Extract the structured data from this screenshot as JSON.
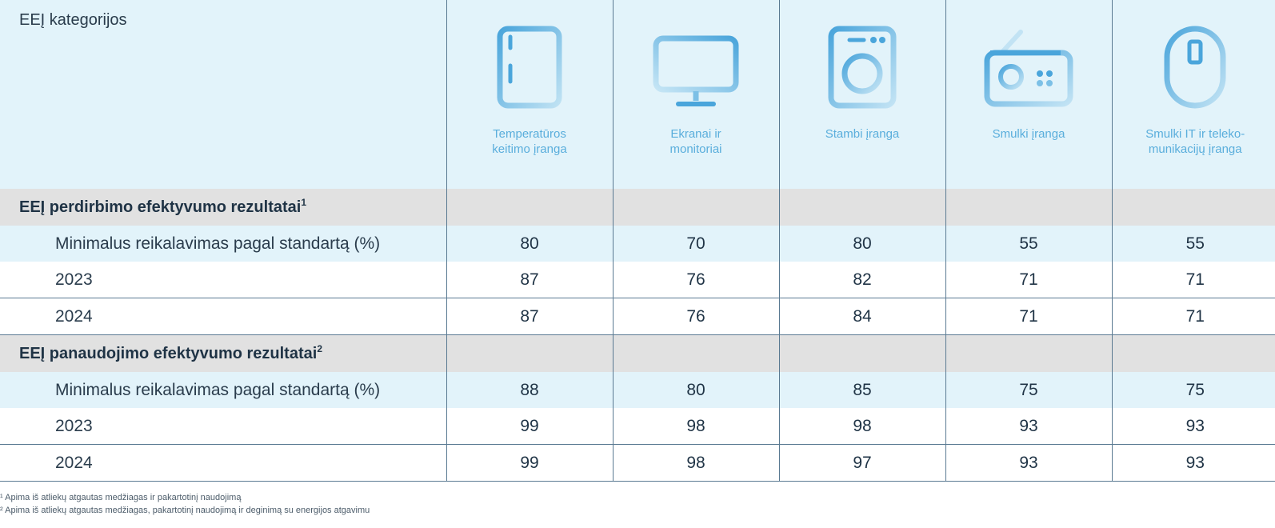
{
  "header": {
    "label": "EEĮ kategorijos"
  },
  "categories": [
    {
      "name": "Temperatūros keitimo įranga",
      "icon": "fridge-icon",
      "lines": [
        "Temperatūros",
        "keitimo įranga"
      ]
    },
    {
      "name": "Ekranai ir monitoriai",
      "icon": "monitor-icon",
      "lines": [
        "Ekranai ir",
        "monitoriai"
      ]
    },
    {
      "name": "Stambi įranga",
      "icon": "washing-machine-icon",
      "lines": [
        "Stambi įranga",
        ""
      ]
    },
    {
      "name": "Smulki įranga",
      "icon": "radio-icon",
      "lines": [
        "Smulki įranga",
        ""
      ]
    },
    {
      "name": "Smulki IT ir telekomunikacijų įranga",
      "icon": "computer-mouse-icon",
      "lines": [
        "Smulki IT ir teleko-",
        "munikacijų įranga"
      ]
    }
  ],
  "sections": [
    {
      "title": "EEĮ perdirbimo efektyvumo rezultatai",
      "note": "1",
      "rows": [
        {
          "label": "Minimalus reikalavimas pagal standartą (%)",
          "values": [
            "80",
            "70",
            "80",
            "55",
            "55"
          ]
        },
        {
          "label": "2023",
          "values": [
            "87",
            "76",
            "82",
            "71",
            "71"
          ]
        },
        {
          "label": "2024",
          "values": [
            "87",
            "76",
            "84",
            "71",
            "71"
          ]
        }
      ]
    },
    {
      "title": "EEĮ panaudojimo efektyvumo rezultatai",
      "note": "2",
      "rows": [
        {
          "label": "Minimalus reikalavimas pagal standartą (%)",
          "values": [
            "88",
            "80",
            "85",
            "75",
            "75"
          ]
        },
        {
          "label": "2023",
          "values": [
            "99",
            "98",
            "98",
            "93",
            "93"
          ]
        },
        {
          "label": "2024",
          "values": [
            "99",
            "98",
            "97",
            "93",
            "93"
          ]
        }
      ]
    }
  ],
  "footnotes": [
    "¹ Apima iš atliekų atgautas medžiagas ir pakartotinį naudojimą",
    "² Apima iš atliekų atgautas medžiagas, pakartotinį naudojimą ir deginimą su energijos atgavimu"
  ],
  "colors": {
    "header_bg": "#e2f3fa",
    "section_bg": "#e1e1e1",
    "icon_blue": "#5aaedc",
    "rule": "#5a7a92"
  }
}
